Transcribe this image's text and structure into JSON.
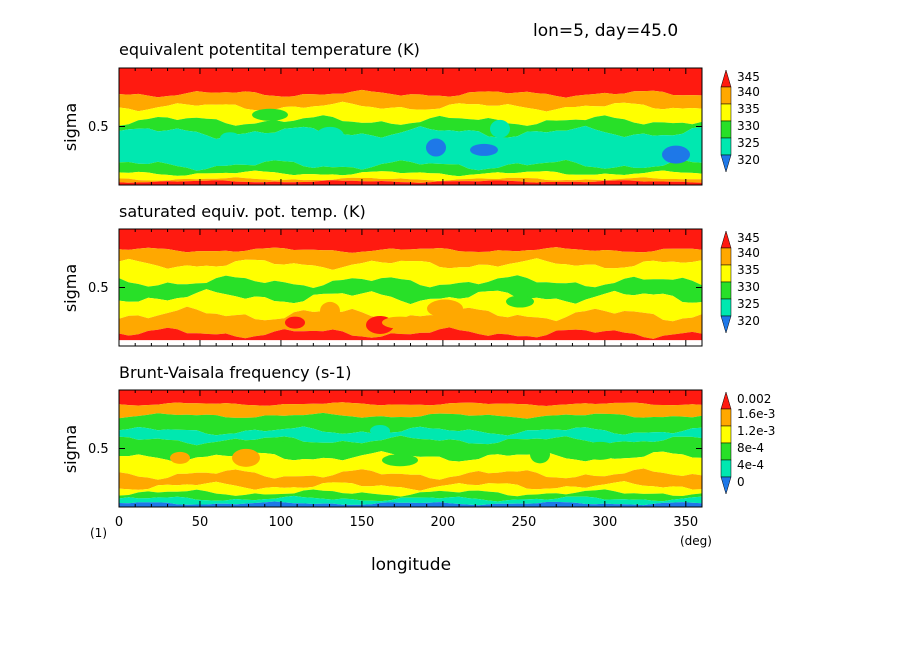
{
  "header": {
    "info": "lon=5, day=45.0"
  },
  "xaxis": {
    "label": "longitude",
    "unit": "(deg)",
    "ticks": [
      "0",
      "50",
      "100",
      "150",
      "200",
      "250",
      "300",
      "350"
    ],
    "figure_label": "(1)"
  },
  "colors": {
    "blue": "#1e78e8",
    "cyan": "#00e8b0",
    "green": "#28e028",
    "yellow": "#ffff00",
    "orange": "#ffa800",
    "red": "#ff1a10"
  },
  "chart_data": [
    {
      "type": "heatmap",
      "title": "equivalent potentital temperature (K)",
      "xlabel": "longitude",
      "ylabel": "sigma",
      "ytick": "0.5",
      "xlim": [
        0,
        360
      ],
      "colorbar": {
        "labels": [
          "345",
          "340",
          "335",
          "330",
          "325",
          "320"
        ]
      },
      "bands_top_to_bottom": [
        "red",
        "orange",
        "yellow",
        "green",
        "cyan",
        "green",
        "yellow",
        "orange",
        "red"
      ]
    },
    {
      "type": "heatmap",
      "title": "saturated equiv. pot. temp. (K)",
      "xlabel": "longitude",
      "ylabel": "sigma",
      "ytick": "0.5",
      "xlim": [
        0,
        360
      ],
      "colorbar": {
        "labels": [
          "345",
          "340",
          "335",
          "330",
          "325",
          "320"
        ]
      },
      "bands_top_to_bottom": [
        "red",
        "orange",
        "yellow",
        "green",
        "yellow",
        "orange",
        "red"
      ]
    },
    {
      "type": "heatmap",
      "title": "Brunt-Vaisala frequency (s-1)",
      "xlabel": "longitude",
      "ylabel": "sigma",
      "ytick": "0.5",
      "xlim": [
        0,
        360
      ],
      "colorbar": {
        "labels": [
          "0.002",
          "1.6e-3",
          "1.2e-3",
          "8e-4",
          "4e-4",
          "0"
        ]
      },
      "bands_top_to_bottom": [
        "red",
        "orange",
        "green",
        "cyan",
        "green",
        "yellow",
        "orange",
        "yellow",
        "green",
        "cyan",
        "blue"
      ]
    }
  ]
}
